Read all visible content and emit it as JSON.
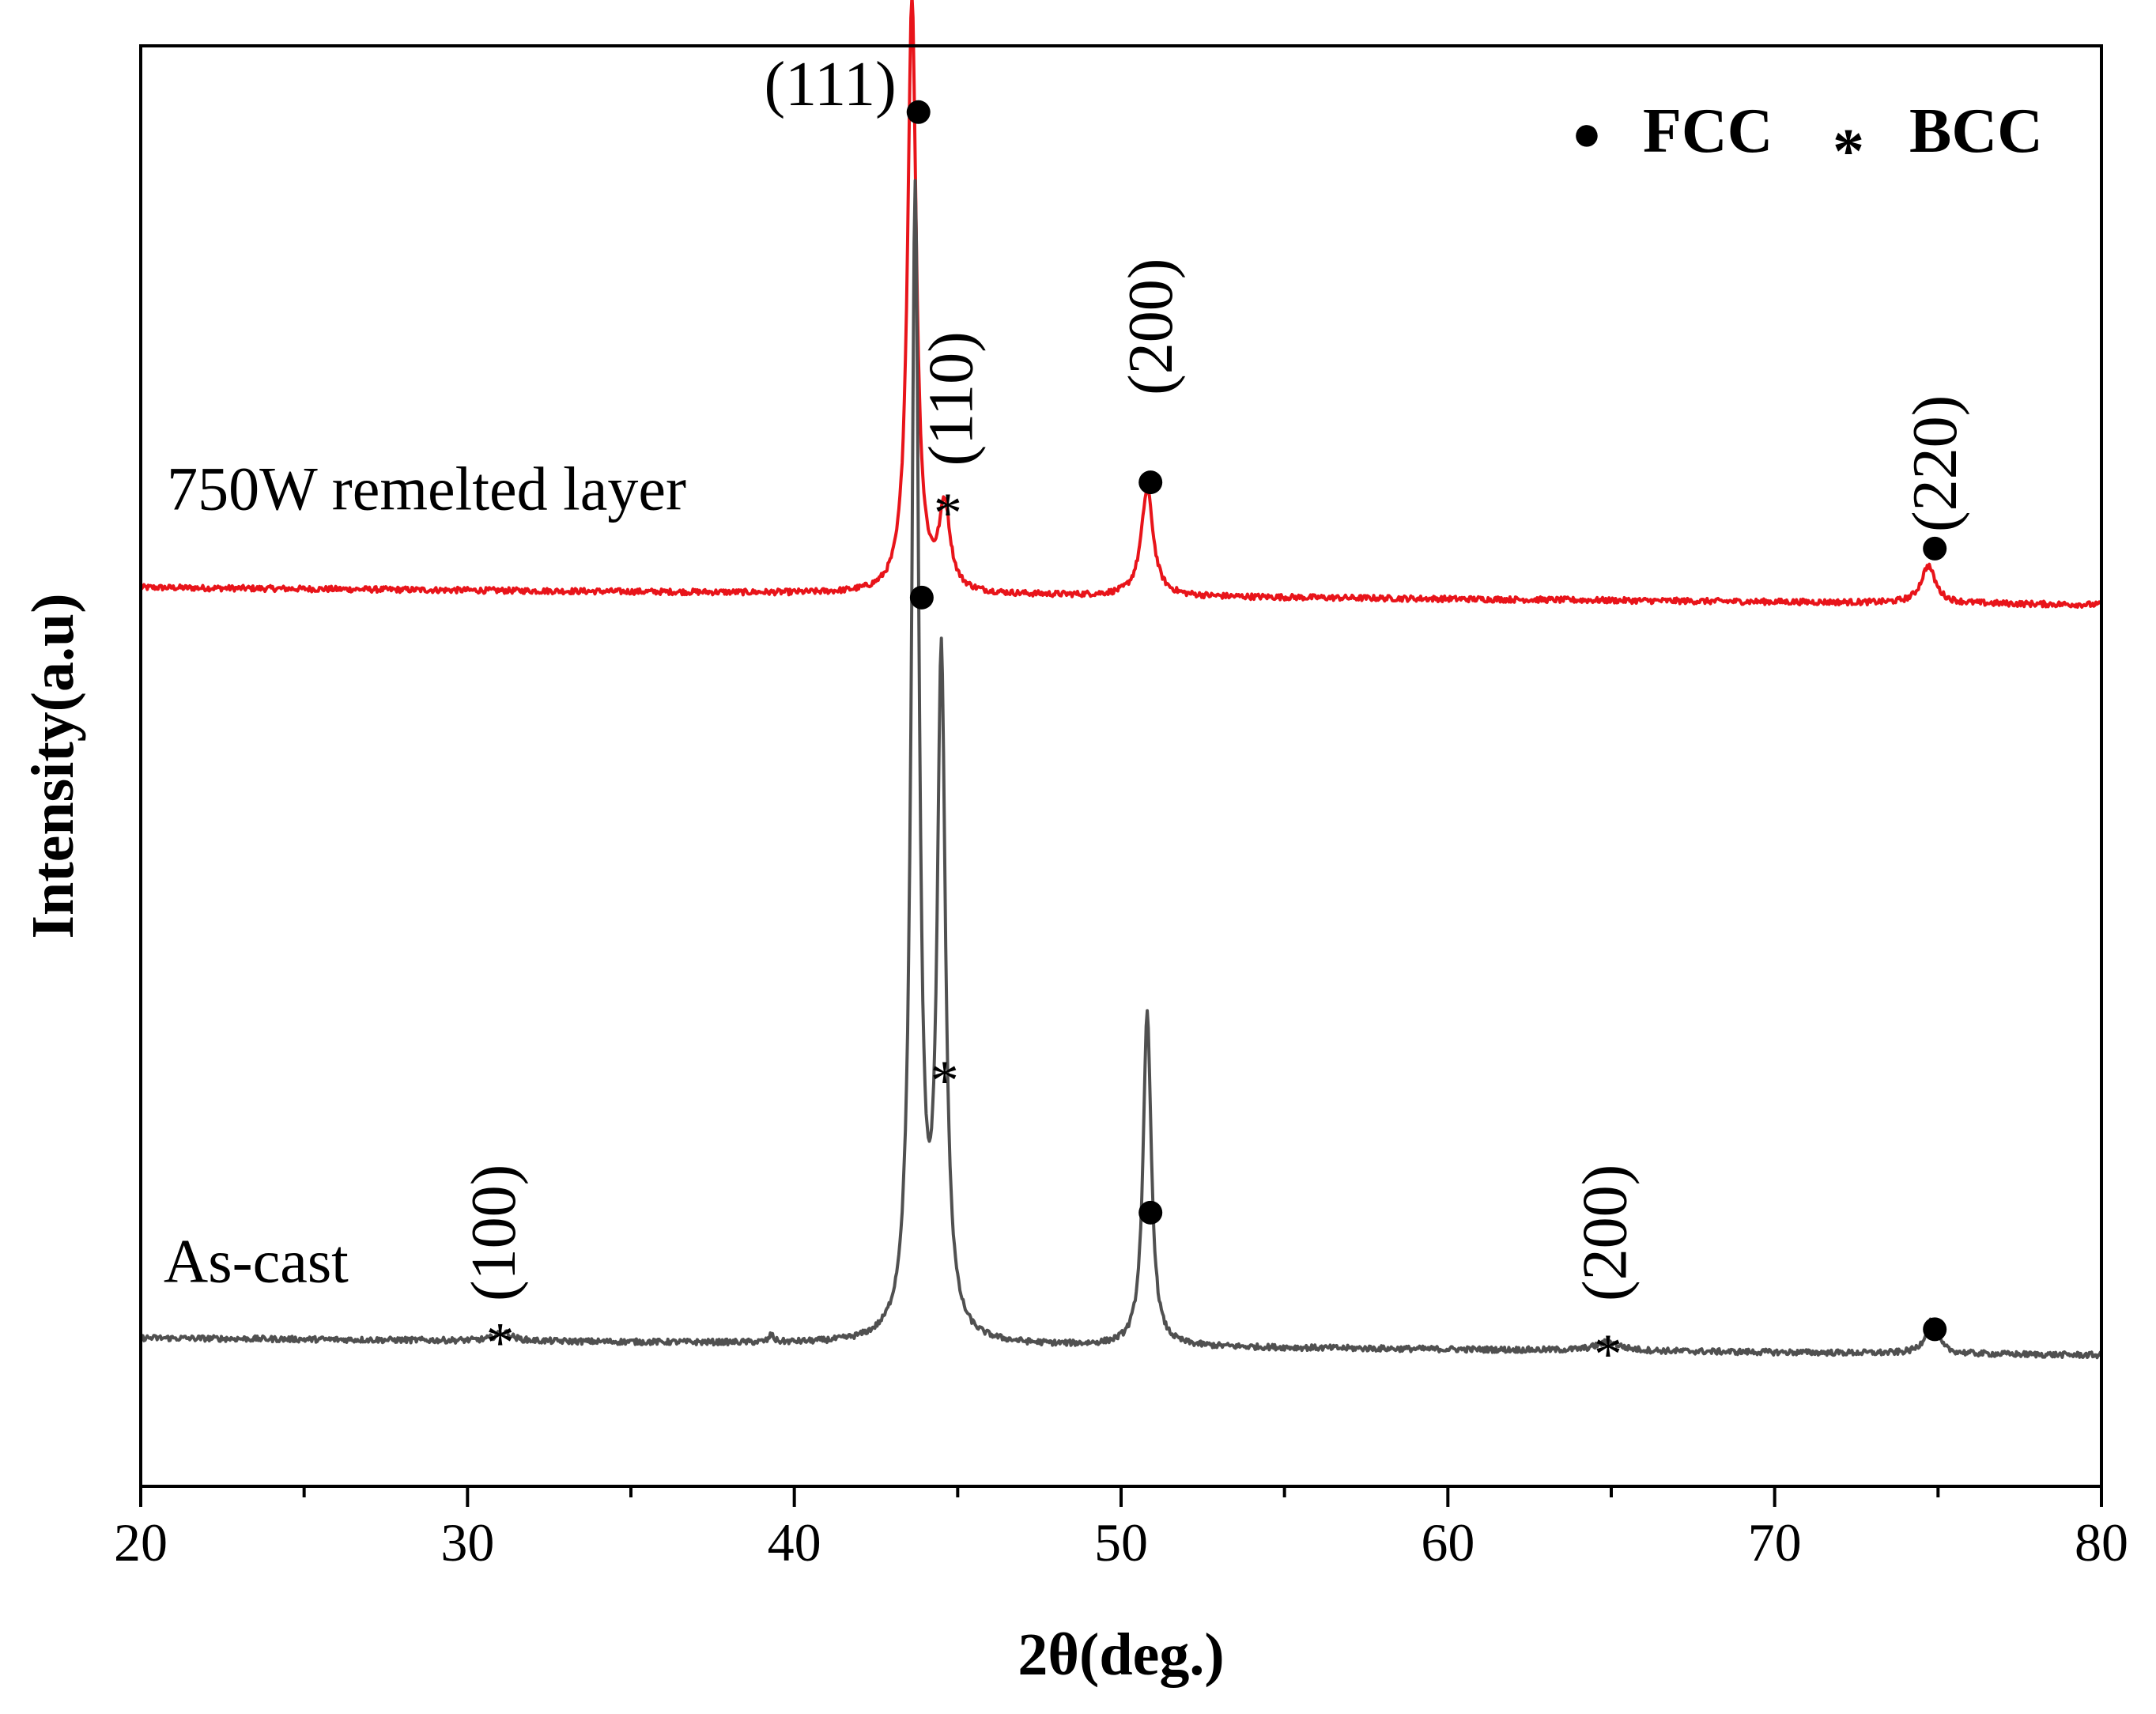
{
  "chart_data": {
    "type": "line",
    "title": "",
    "xlabel": "2θ(deg.)",
    "ylabel": "Intensity(a.u)",
    "xlim": [
      20,
      80
    ],
    "ylim": [
      0,
      1
    ],
    "x_ticks": [
      20,
      30,
      40,
      50,
      60,
      70,
      80
    ],
    "x_tick_labels": [
      "20",
      "30",
      "40",
      "50",
      "60",
      "70",
      "80"
    ],
    "y_tick_labels": [],
    "grid": false,
    "legend": {
      "position": "top-right",
      "entries": [
        {
          "marker": "●",
          "label": "FCC",
          "marker_type": "circle"
        },
        {
          "marker": "*",
          "label": "BCC",
          "marker_type": "asterisk"
        }
      ]
    },
    "series": [
      {
        "name": "750W remelted layer",
        "color": "#e8141a",
        "baseline_start": 0.624,
        "baseline_end": 0.612,
        "peaks": [
          {
            "x": 43.6,
            "height": 0.414,
            "width": 0.16,
            "phase": "FCC",
            "hkl": "(111)"
          },
          {
            "x": 44.6,
            "height": 0.058,
            "width": 0.2,
            "phase": "BCC",
            "hkl": "(110)"
          },
          {
            "x": 50.8,
            "height": 0.074,
            "width": 0.22,
            "phase": "FCC",
            "hkl": "(200)"
          },
          {
            "x": 74.7,
            "height": 0.026,
            "width": 0.26,
            "phase": "FCC",
            "hkl": "(220)"
          }
        ]
      },
      {
        "name": "As-cast",
        "color": "#505050",
        "baseline_start": 0.103,
        "baseline_end": 0.091,
        "peaks": [
          {
            "x": 31.1,
            "height": 0.006,
            "width": 0.3,
            "phase": "BCC",
            "hkl": "(100)"
          },
          {
            "x": 39.3,
            "height": 0.005,
            "width": 0.08,
            "phase": "",
            "hkl": ""
          },
          {
            "x": 43.7,
            "height": 0.791,
            "width": 0.14,
            "phase": "FCC",
            "hkl": "(111)"
          },
          {
            "x": 44.5,
            "height": 0.467,
            "width": 0.15,
            "phase": "BCC",
            "hkl": "(110)"
          },
          {
            "x": 50.8,
            "height": 0.231,
            "width": 0.15,
            "phase": "FCC",
            "hkl": "(200)"
          },
          {
            "x": 64.9,
            "height": 0.006,
            "width": 0.45,
            "phase": "BCC",
            "hkl": "(200)"
          },
          {
            "x": 74.8,
            "height": 0.023,
            "width": 0.22,
            "phase": "FCC",
            "hkl": "(220)"
          }
        ]
      }
    ],
    "annotations": [
      {
        "text": "(111)",
        "x": 41.1,
        "y": 0.969,
        "rotated": false,
        "series": "750W remelted layer"
      },
      {
        "text": "(110)",
        "x": 45.0,
        "y": 0.755,
        "rotated": true,
        "series": "750W remelted layer"
      },
      {
        "text": "(200)",
        "x": 51.1,
        "y": 0.805,
        "rotated": true,
        "series": "750W remelted layer"
      },
      {
        "text": "(220)",
        "x": 75.1,
        "y": 0.71,
        "rotated": true,
        "series": "750W remelted layer"
      },
      {
        "text": "(100)",
        "x": 31.0,
        "y": 0.176,
        "rotated": true,
        "series": "As-cast"
      },
      {
        "text": "(200)",
        "x": 65.0,
        "y": 0.176,
        "rotated": true,
        "series": "As-cast"
      }
    ],
    "phase_markers": [
      {
        "symbol": "●",
        "x": 43.8,
        "y": 0.954
      },
      {
        "symbol": "*",
        "x": 44.7,
        "y": 0.68
      },
      {
        "symbol": "●",
        "x": 50.9,
        "y": 0.697
      },
      {
        "symbol": "●",
        "x": 74.9,
        "y": 0.651
      },
      {
        "symbol": "●",
        "x": 43.9,
        "y": 0.617
      },
      {
        "symbol": "*",
        "x": 44.6,
        "y": 0.286
      },
      {
        "symbol": "●",
        "x": 50.9,
        "y": 0.19
      },
      {
        "symbol": "●",
        "x": 74.9,
        "y": 0.109
      },
      {
        "symbol": "*",
        "x": 31.0,
        "y": 0.104
      },
      {
        "symbol": "*",
        "x": 64.9,
        "y": 0.096
      }
    ],
    "series_labels": [
      {
        "text": "750W remelted layer",
        "x": 20.8,
        "y": 0.678
      },
      {
        "text": "As-cast",
        "x": 20.7,
        "y": 0.142
      }
    ]
  }
}
